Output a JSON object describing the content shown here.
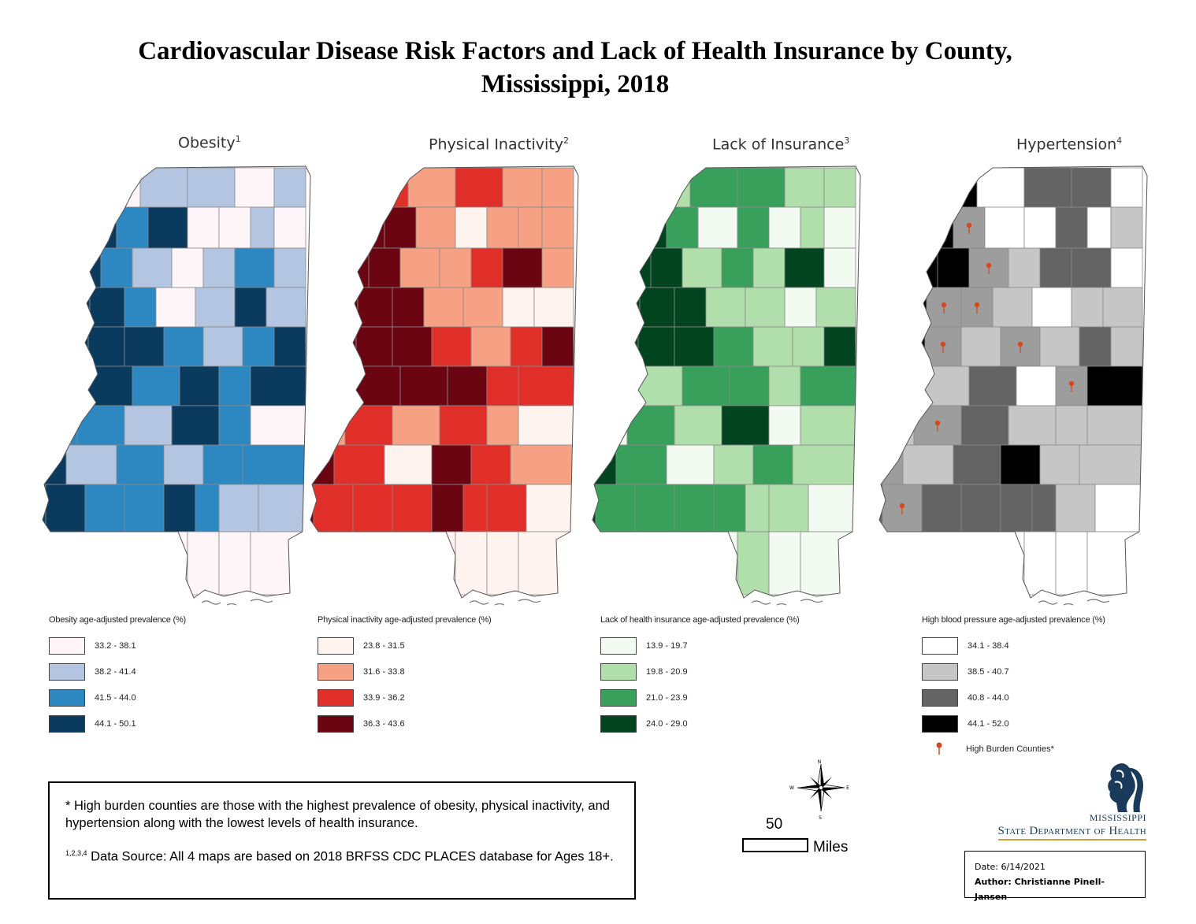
{
  "title_line1": "Cardiovascular Disease Risk Factors and Lack of Health Insurance by County,",
  "title_line2": "Mississippi, 2018",
  "maps": [
    {
      "id": "obesity",
      "title": "Obesity",
      "sup": "1",
      "legend_title": "Obesity age-adjusted prevalence (%)",
      "classes": [
        {
          "label": "33.2 - 38.1",
          "color": "#fdf5f8"
        },
        {
          "label": "38.2 - 41.4",
          "color": "#b3c5e1"
        },
        {
          "label": "41.5 - 44.0",
          "color": "#2d88c2"
        },
        {
          "label": "44.1 - 50.1",
          "color": "#0a3a5e"
        }
      ]
    },
    {
      "id": "inactivity",
      "title": "Physical Inactivity",
      "sup": "2",
      "legend_title": "Physical inactivity age-adjusted prevalence (%)",
      "classes": [
        {
          "label": "23.8 - 31.5",
          "color": "#fef3ee"
        },
        {
          "label": "31.6 - 33.8",
          "color": "#f6a184"
        },
        {
          "label": "33.9 - 36.2",
          "color": "#e02e28"
        },
        {
          "label": "36.3 - 43.6",
          "color": "#6b0512"
        }
      ]
    },
    {
      "id": "insurance",
      "title": "Lack of Insurance",
      "sup": "3",
      "legend_title": "Lack of health insurance age-adjusted prevalence (%)",
      "classes": [
        {
          "label": "13.9 - 19.7",
          "color": "#f3faf1"
        },
        {
          "label": "19.8 - 20.9",
          "color": "#b1dfab"
        },
        {
          "label": "21.0 - 23.9",
          "color": "#38a05a"
        },
        {
          "label": "24.0 - 29.0",
          "color": "#034420"
        }
      ]
    },
    {
      "id": "hypertension",
      "title": "Hypertension",
      "sup": "4",
      "legend_title": "High blood pressure age-adjusted prevalence (%)",
      "classes": [
        {
          "label": "34.1 - 38.4",
          "color": "#ffffff"
        },
        {
          "label": "38.5 - 40.7",
          "color": "#c6c6c6"
        },
        {
          "label": "40.8 - 44.0",
          "color": "#646464"
        },
        {
          "label": "44.1 - 52.0",
          "color": "#000000"
        }
      ],
      "extra_legend": "High Burden Counties*",
      "high_burden_color": "#d9481d",
      "high_burden_fill": "#9d9d9d"
    }
  ],
  "notes": {
    "footnote": "* High burden counties are those with the highest prevalence of obesity, physical inactivity, and hypertension along with the lowest levels of health insurance.",
    "source_sup": "1,2,3,4",
    "source": " Data Source: All 4 maps are based on 2018 BRFSS CDC PLACES database for Ages 18+."
  },
  "scale": {
    "value": "50",
    "unit": "Miles"
  },
  "compass": {
    "n": "N",
    "s": "S",
    "e": "E",
    "w": "W"
  },
  "logo": {
    "line1": "Mississippi",
    "line2": "State Department of Health"
  },
  "info": {
    "date": "Date: 6/14/2021",
    "author": "Author: Christianne Pinell-Jansen"
  }
}
